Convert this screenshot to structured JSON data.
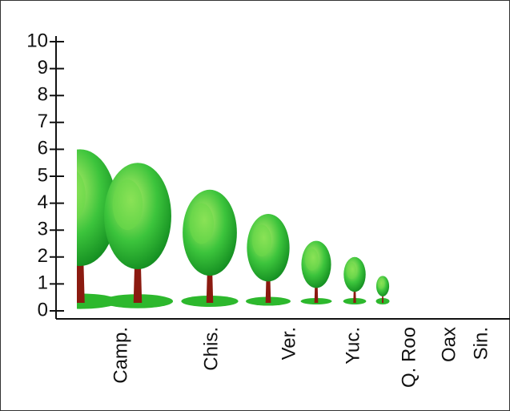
{
  "chart_data": {
    "type": "pictograph",
    "categories": [
      "Camp.",
      "Chis.",
      "Ver.",
      "Yuc.",
      "Q. Roo",
      "Oax",
      "Sin."
    ],
    "values": [
      6,
      5.5,
      4.5,
      3.6,
      2.6,
      2,
      1.3
    ],
    "color": "#2db82d",
    "ylim": [
      0,
      10
    ],
    "yticks": [
      0,
      1,
      2,
      3,
      4,
      5,
      6,
      7,
      8,
      9,
      10
    ]
  }
}
